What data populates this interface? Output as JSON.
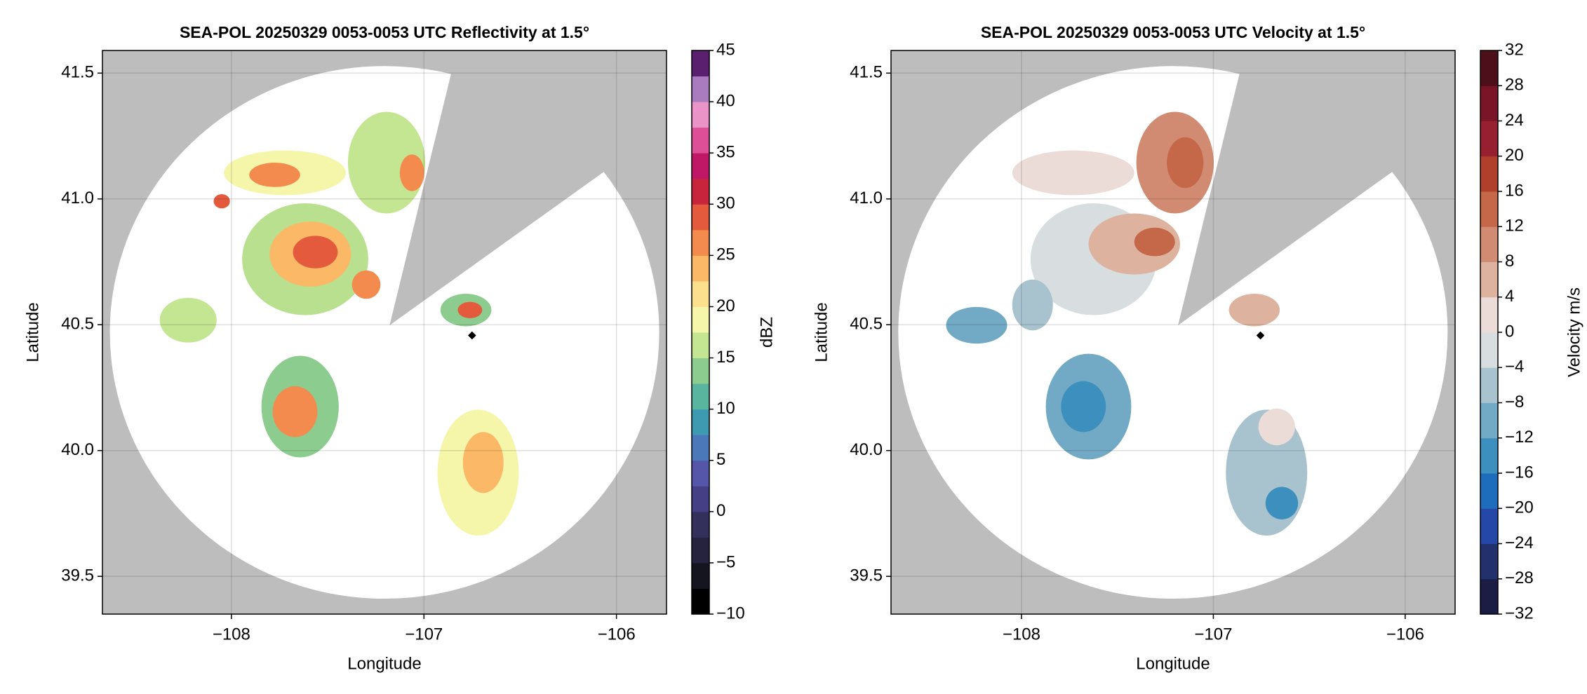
{
  "chart_data": [
    {
      "type": "radar-ppi",
      "title": "SEA-POL 20250329 0053-0053 UTC Reflectivity at 1.5°",
      "x_label": "Longitude",
      "y_label": "Latitude",
      "xlim": [
        -108.67,
        -105.74
      ],
      "ylim": [
        39.35,
        41.59
      ],
      "xticks": [
        {
          "value": -108,
          "label": "−108"
        },
        {
          "value": -107,
          "label": "−107"
        },
        {
          "value": -106,
          "label": "−106"
        }
      ],
      "yticks": [
        39.5,
        {
          "value": 40.0,
          "label": "40.0"
        },
        40.5,
        {
          "value": 41.0,
          "label": "41.0"
        },
        41.5
      ],
      "grid": true,
      "colorbar": {
        "label": "dBZ",
        "lim": [
          -10,
          45
        ],
        "ticks": [
          {
            "value": -10,
            "label": "−10"
          },
          {
            "value": -5,
            "label": "−5"
          },
          0,
          5,
          10,
          15,
          20,
          25,
          30,
          35,
          40,
          45
        ],
        "colors": [
          "#000000",
          "#15151f",
          "#25233d",
          "#34305c",
          "#453f86",
          "#5555aa",
          "#4b78b8",
          "#3d9ab0",
          "#5ab59f",
          "#8ccc8e",
          "#c4e591",
          "#f6f6aa",
          "#fde08d",
          "#fbb867",
          "#f48b4e",
          "#e35a3d",
          "#c8253c",
          "#c01866",
          "#dd4f97",
          "#ea93c6",
          "#a97cc0",
          "#5a1f6e"
        ]
      }
    },
    {
      "type": "radar-ppi",
      "title": "SEA-POL 20250329 0053-0053 UTC Velocity at 1.5°",
      "x_label": "Longitude",
      "y_label": "Latitude",
      "xlim": [
        -108.68,
        -105.74
      ],
      "ylim": [
        39.35,
        41.59
      ],
      "xticks": [
        {
          "value": -108,
          "label": "−108"
        },
        {
          "value": -107,
          "label": "−107"
        },
        {
          "value": -106,
          "label": "−106"
        }
      ],
      "yticks": [
        39.5,
        {
          "value": 40.0,
          "label": "40.0"
        },
        40.5,
        {
          "value": 41.0,
          "label": "41.0"
        },
        41.5
      ],
      "grid": true,
      "colorbar": {
        "label": "Velocity m/s",
        "lim": [
          -32,
          32
        ],
        "ticks": [
          {
            "value": -32,
            "label": "−32"
          },
          {
            "value": -28,
            "label": "−28"
          },
          {
            "value": -24,
            "label": "−24"
          },
          {
            "value": -20,
            "label": "−20"
          },
          {
            "value": -16,
            "label": "−16"
          },
          {
            "value": -12,
            "label": "−12"
          },
          {
            "value": -8,
            "label": "−8"
          },
          {
            "value": -4,
            "label": "−4"
          },
          0,
          4,
          8,
          12,
          16,
          20,
          24,
          28,
          32
        ],
        "colors": [
          "#1b1d45",
          "#23306e",
          "#2447a8",
          "#1e6dbd",
          "#3d8fbe",
          "#72a9c4",
          "#a8c3cd",
          "#d8dde0",
          "#ecdcd8",
          "#ddb3a0",
          "#d18b72",
          "#c46849",
          "#b0402b",
          "#96202f",
          "#7a1528",
          "#4d0f1a"
        ]
      }
    }
  ]
}
